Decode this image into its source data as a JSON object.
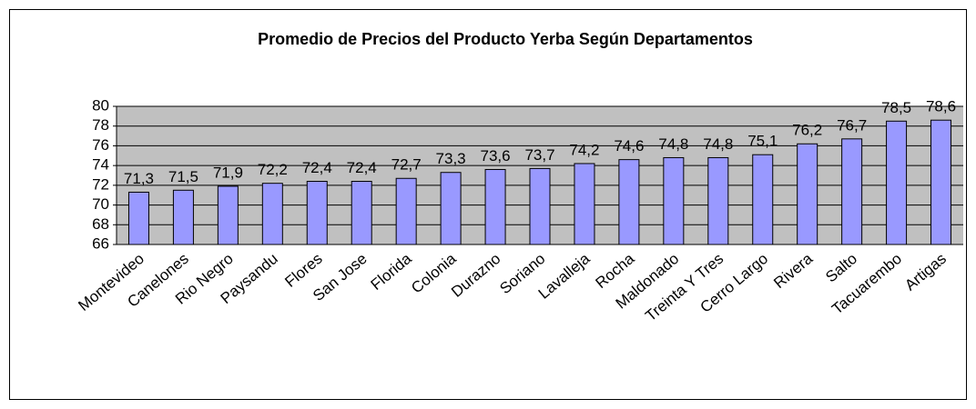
{
  "chart_data": {
    "type": "bar",
    "title": "Promedio de Precios del Producto Yerba Según Departamentos",
    "categories": [
      "Montevideo",
      "Canelones",
      "Rio Negro",
      "Paysandu",
      "Flores",
      "San Jose",
      "Florida",
      "Colonia",
      "Durazno",
      "Soriano",
      "Lavalleja",
      "Rocha",
      "Maldonado",
      "Treinta Y Tres",
      "Cerro Largo",
      "Rivera",
      "Salto",
      "Tacuarembo",
      "Artigas"
    ],
    "values": [
      71.3,
      71.5,
      71.9,
      72.2,
      72.4,
      72.4,
      72.7,
      73.3,
      73.6,
      73.7,
      74.2,
      74.6,
      74.8,
      74.8,
      75.1,
      76.2,
      76.7,
      78.5,
      78.6
    ],
    "value_labels": [
      "71,3",
      "71,5",
      "71,9",
      "72,2",
      "72,4",
      "72,4",
      "72,7",
      "73,3",
      "73,6",
      "73,7",
      "74,2",
      "74,6",
      "74,8",
      "74,8",
      "75,1",
      "76,2",
      "76,7",
      "78,5",
      "78,6"
    ],
    "color": "#9999ff",
    "ylim": [
      66,
      80
    ],
    "yticks": [
      66,
      68,
      70,
      72,
      74,
      76,
      78,
      80
    ],
    "grid": true
  }
}
